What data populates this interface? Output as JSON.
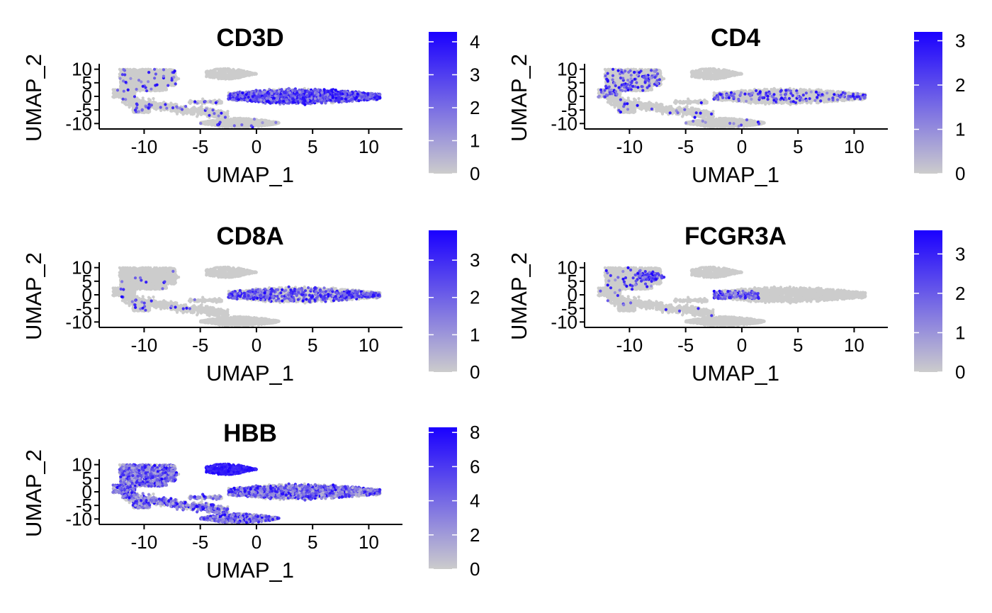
{
  "colors": {
    "low": "#cccccc",
    "high": "#1a00ff",
    "axis": "#000000",
    "background": "#ffffff"
  },
  "chart_data": [
    {
      "type": "scatter",
      "title": "CD3D",
      "xlabel": "UMAP_1",
      "ylabel": "UMAP_2",
      "xlim": [
        -14,
        13
      ],
      "ylim": [
        -12,
        12
      ],
      "xticks": [
        -10,
        -5,
        0,
        5,
        10
      ],
      "yticks": [
        -10,
        -5,
        0,
        5,
        10
      ],
      "xtick_labels": [
        "-10",
        "-5",
        "0",
        "5",
        "10"
      ],
      "ytick_labels": [
        "-10",
        "-5",
        "0",
        "5",
        "10"
      ],
      "legend": {
        "min": 0,
        "max": 4.3,
        "ticks": [
          0,
          1,
          2,
          3,
          4
        ],
        "tick_labels": [
          "0",
          "1",
          "2",
          "3",
          "4"
        ]
      },
      "expression_profile": {
        "tcell": 0.75,
        "nk": 0.12,
        "mono": 0.02,
        "fcg": 0.02,
        "rbc": 0.0,
        "bcell": 0.02,
        "lower": 0.05,
        "baseline_fraction": 0.0
      }
    },
    {
      "type": "scatter",
      "title": "CD4",
      "xlabel": "UMAP_1",
      "ylabel": "UMAP_2",
      "xlim": [
        -14,
        13
      ],
      "ylim": [
        -12,
        12
      ],
      "xticks": [
        -10,
        -5,
        0,
        5,
        10
      ],
      "yticks": [
        -10,
        -5,
        0,
        5,
        10
      ],
      "xtick_labels": [
        "-10",
        "-5",
        "0",
        "5",
        "10"
      ],
      "ytick_labels": [
        "-10",
        "-5",
        "0",
        "5",
        "10"
      ],
      "legend": {
        "min": 0,
        "max": 3.2,
        "ticks": [
          0,
          1,
          2,
          3
        ],
        "tick_labels": [
          "0",
          "1",
          "2",
          "3"
        ]
      },
      "expression_profile": {
        "tcell": 0.06,
        "nk": 0.02,
        "mono": 0.09,
        "fcg": 0.08,
        "rbc": 0.0,
        "bcell": 0.02,
        "lower": 0.02,
        "baseline_fraction": 0.0
      }
    },
    {
      "type": "scatter",
      "title": "CD8A",
      "xlabel": "UMAP_1",
      "ylabel": "UMAP_2",
      "xlim": [
        -14,
        13
      ],
      "ylim": [
        -12,
        12
      ],
      "xticks": [
        -10,
        -5,
        0,
        5,
        10
      ],
      "yticks": [
        -10,
        -5,
        0,
        5,
        10
      ],
      "xtick_labels": [
        "-10",
        "-5",
        "0",
        "5",
        "10"
      ],
      "ytick_labels": [
        "-10",
        "-5",
        "0",
        "5",
        "10"
      ],
      "legend": {
        "min": 0,
        "max": 3.8,
        "ticks": [
          0,
          1,
          2,
          3
        ],
        "tick_labels": [
          "0",
          "1",
          "2",
          "3"
        ]
      },
      "expression_profile": {
        "tcell": 0.18,
        "nk": 0.25,
        "mono": 0.01,
        "fcg": 0.0,
        "rbc": 0.0,
        "bcell": 0.0,
        "lower": 0.02,
        "baseline_fraction": 0.0
      }
    },
    {
      "type": "scatter",
      "title": "FCGR3A",
      "xlabel": "UMAP_1",
      "ylabel": "UMAP_2",
      "xlim": [
        -14,
        13
      ],
      "ylim": [
        -12,
        12
      ],
      "xticks": [
        -10,
        -5,
        0,
        5,
        10
      ],
      "yticks": [
        -10,
        -5,
        0,
        5,
        10
      ],
      "xtick_labels": [
        "-10",
        "-5",
        "0",
        "5",
        "10"
      ],
      "ytick_labels": [
        "-10",
        "-5",
        "0",
        "5",
        "10"
      ],
      "legend": {
        "min": 0,
        "max": 3.6,
        "ticks": [
          0,
          1,
          2,
          3
        ],
        "tick_labels": [
          "0",
          "1",
          "2",
          "3"
        ]
      },
      "expression_profile": {
        "tcell": 0.0,
        "nk": 0.5,
        "mono": 0.02,
        "fcg": 0.85,
        "rbc": 0.0,
        "bcell": 0.0,
        "lower": 0.01,
        "baseline_fraction": 0.0
      }
    },
    {
      "type": "scatter",
      "title": "HBB",
      "xlabel": "UMAP_1",
      "ylabel": "UMAP_2",
      "xlim": [
        -14,
        13
      ],
      "ylim": [
        -12,
        12
      ],
      "xticks": [
        -10,
        -5,
        0,
        5,
        10
      ],
      "yticks": [
        -10,
        -5,
        0,
        5,
        10
      ],
      "xtick_labels": [
        "-10",
        "-5",
        "0",
        "5",
        "10"
      ],
      "ytick_labels": [
        "-10",
        "-5",
        "0",
        "5",
        "10"
      ],
      "legend": {
        "min": 0,
        "max": 8.3,
        "ticks": [
          0,
          2,
          4,
          6,
          8
        ],
        "tick_labels": [
          "0",
          "2",
          "4",
          "6",
          "8"
        ]
      },
      "expression_profile": {
        "tcell": 0.35,
        "nk": 0.35,
        "mono": 0.35,
        "fcg": 0.35,
        "rbc": 0.95,
        "bcell": 0.35,
        "lower": 0.35,
        "baseline_fraction": 0.25
      }
    }
  ]
}
